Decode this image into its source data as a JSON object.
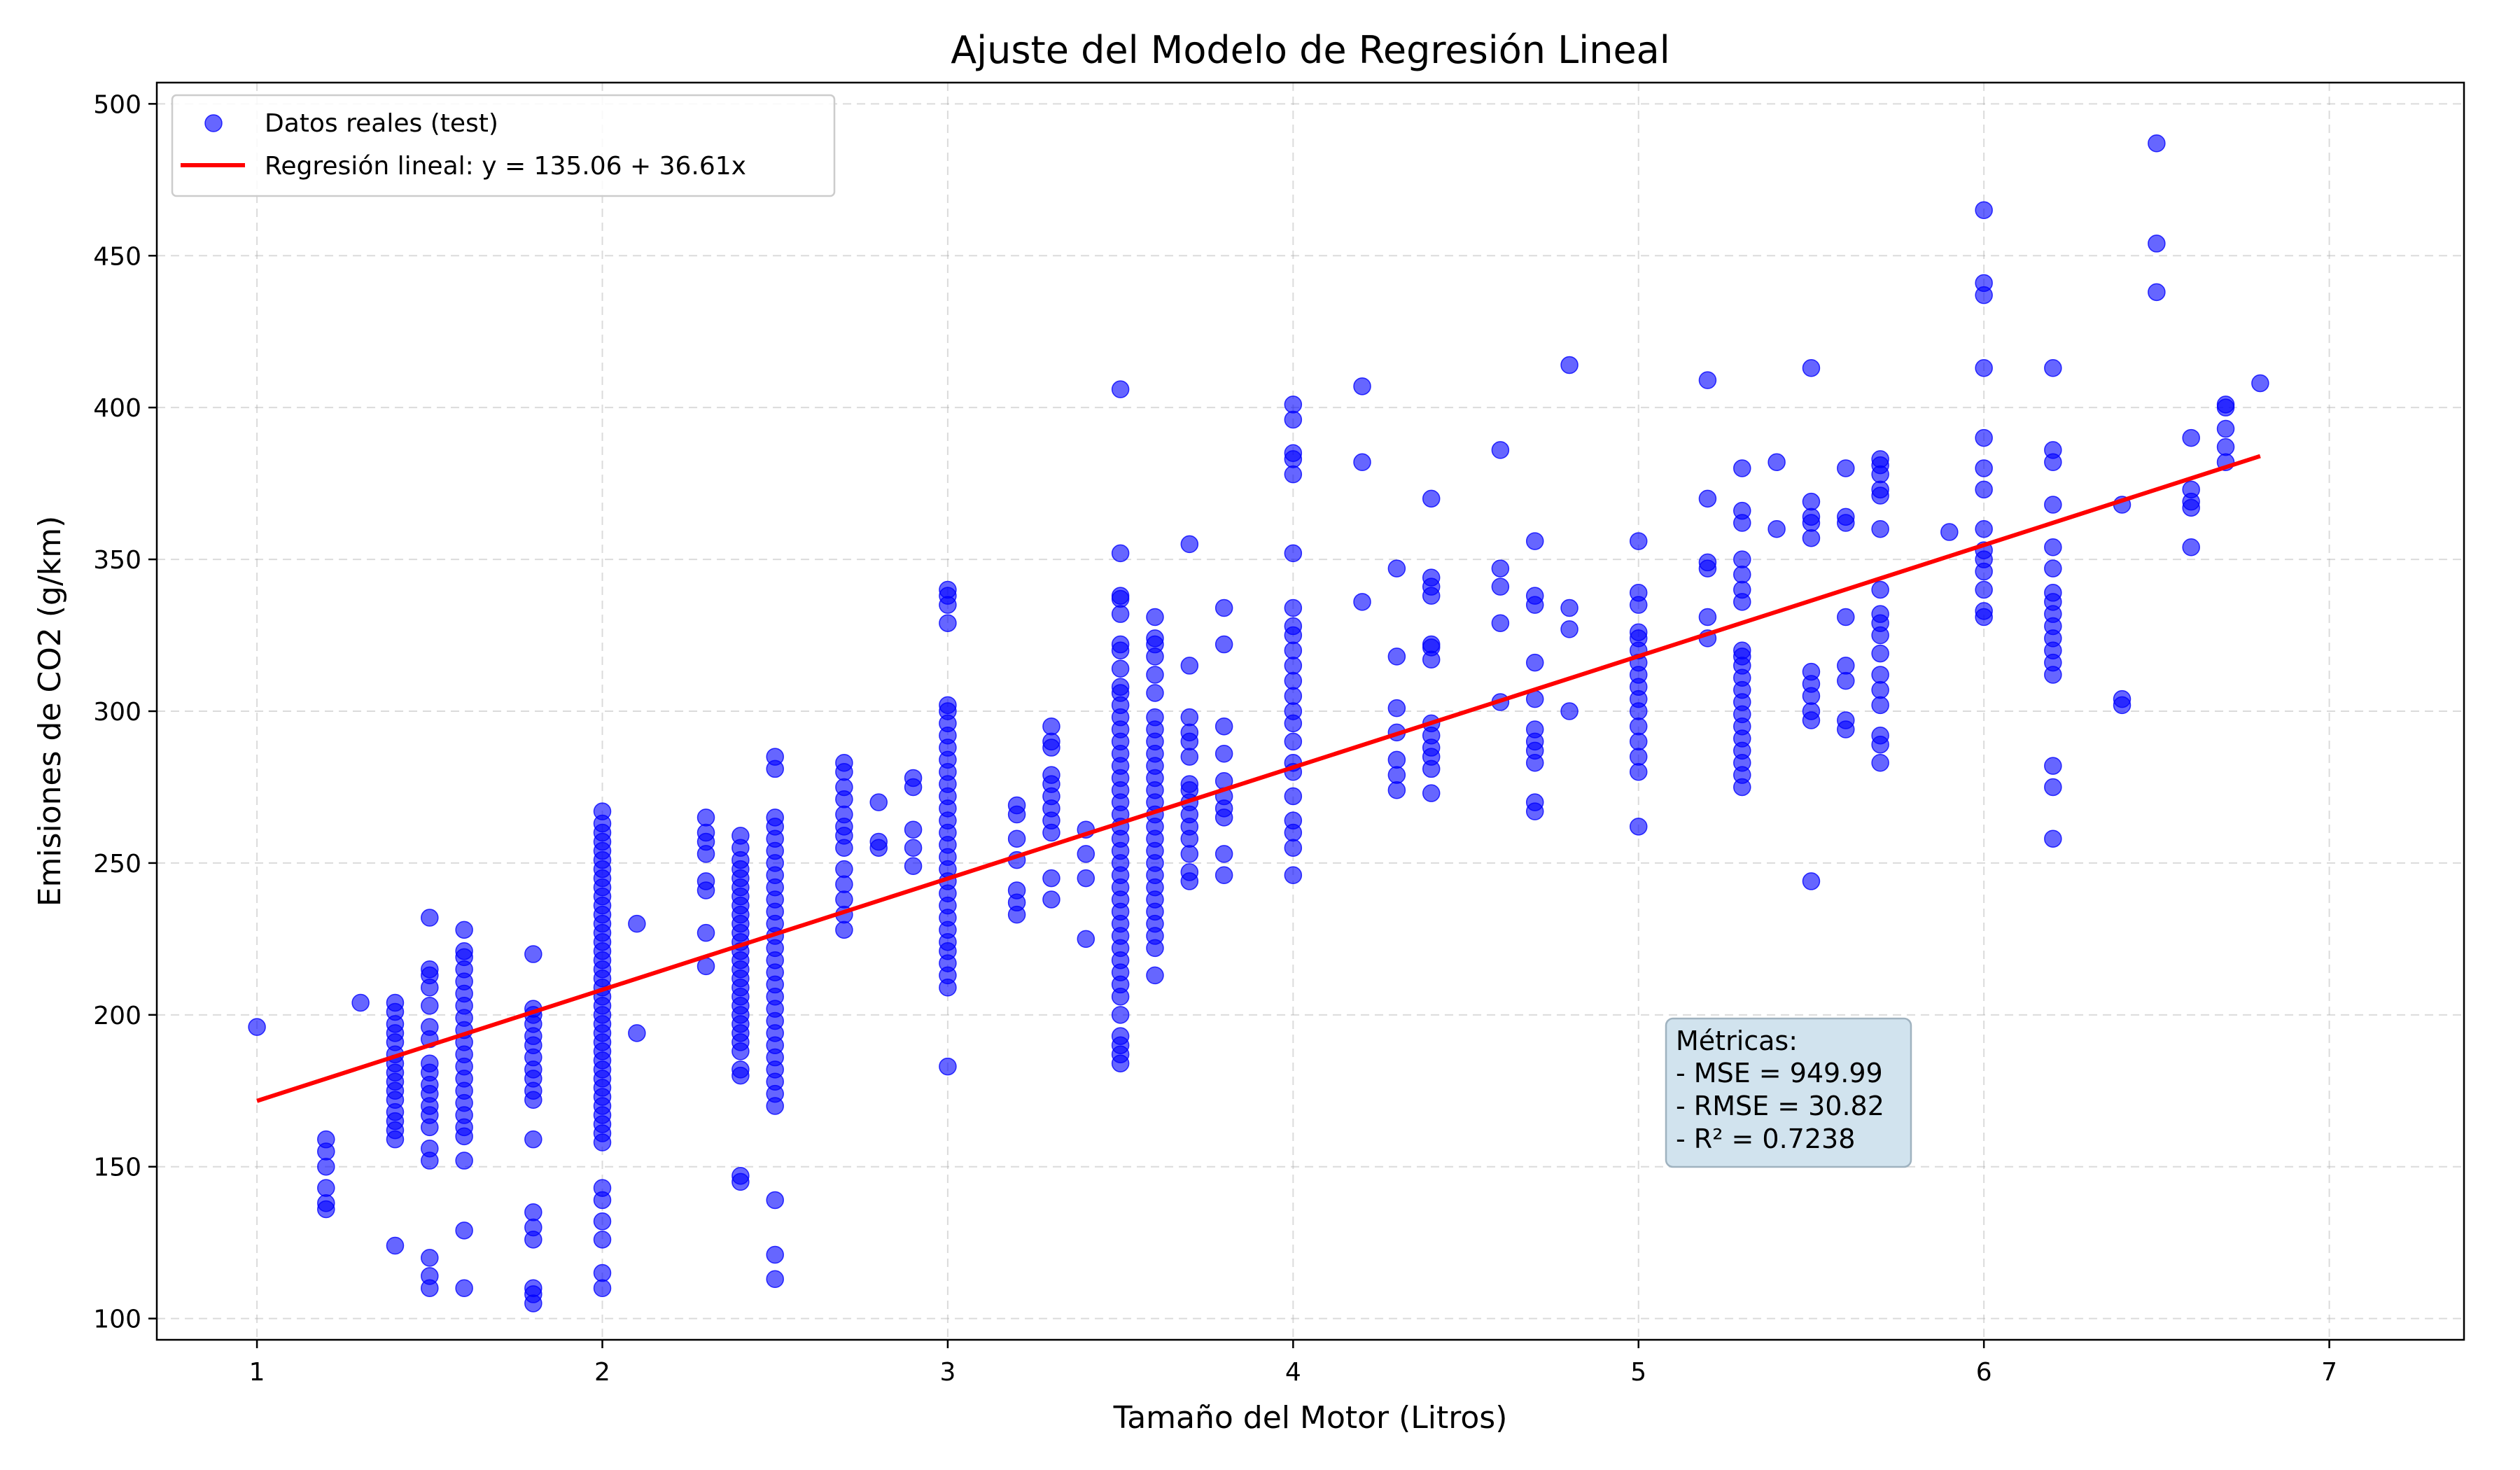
{
  "chart_data": {
    "type": "scatter",
    "title": "Ajuste del Modelo de Regresión Lineal",
    "xlabel": "Tamaño del Motor (Litros)",
    "ylabel": "Emisiones de CO2 (g/km)",
    "xlim": [
      0.71,
      7.39
    ],
    "ylim": [
      93,
      507
    ],
    "xticks": [
      1,
      2,
      3,
      4,
      5,
      6,
      7
    ],
    "yticks": [
      100,
      150,
      200,
      250,
      300,
      350,
      400,
      450,
      500
    ],
    "grid": true,
    "legend_position": "top-left",
    "colors": {
      "points": "#0000ff",
      "line": "#ff0000",
      "metrics_box": "#d1e3ee"
    },
    "series": [
      {
        "name": "Datos reales (test)",
        "kind": "scatter",
        "groups": [
          {
            "x": 1.0,
            "y": [
              196
            ]
          },
          {
            "x": 1.2,
            "y": [
              136,
              138,
              143,
              150,
              155,
              159
            ]
          },
          {
            "x": 1.3,
            "y": [
              204
            ]
          },
          {
            "x": 1.4,
            "y": [
              124,
              159,
              162,
              165,
              168,
              172,
              175,
              178,
              181,
              184,
              187,
              191,
              194,
              197,
              201,
              204
            ]
          },
          {
            "x": 1.5,
            "y": [
              110,
              114,
              120,
              152,
              156,
              163,
              167,
              170,
              174,
              177,
              181,
              184,
              192,
              196,
              203,
              209,
              213,
              215,
              232
            ]
          },
          {
            "x": 1.6,
            "y": [
              110,
              129,
              152,
              160,
              163,
              167,
              171,
              175,
              179,
              183,
              187,
              191,
              195,
              199,
              203,
              207,
              211,
              215,
              219,
              221,
              228
            ]
          },
          {
            "x": 1.8,
            "y": [
              105,
              108,
              110,
              126,
              130,
              135,
              159,
              172,
              175,
              179,
              182,
              186,
              190,
              193,
              197,
              200,
              202,
              220
            ]
          },
          {
            "x": 2.0,
            "y": [
              110,
              115,
              126,
              132,
              139,
              143,
              158,
              161,
              164,
              167,
              170,
              173,
              176,
              179,
              182,
              185,
              188,
              191,
              194,
              197,
              200,
              203,
              206,
              209,
              212,
              215,
              218,
              221,
              224,
              227,
              230,
              233,
              236,
              239,
              242,
              245,
              248,
              251,
              254,
              257,
              260,
              263,
              267
            ]
          },
          {
            "x": 2.1,
            "y": [
              194,
              230
            ]
          },
          {
            "x": 2.3,
            "y": [
              216,
              227,
              241,
              244,
              253,
              257,
              260,
              265
            ]
          },
          {
            "x": 2.4,
            "y": [
              145,
              147,
              180,
              182,
              188,
              191,
              194,
              197,
              200,
              203,
              206,
              209,
              212,
              215,
              218,
              221,
              224,
              227,
              230,
              233,
              236,
              239,
              242,
              245,
              248,
              251,
              255,
              259
            ]
          },
          {
            "x": 2.5,
            "y": [
              113,
              121,
              139,
              170,
              174,
              178,
              182,
              186,
              190,
              194,
              198,
              202,
              206,
              210,
              214,
              218,
              222,
              226,
              230,
              234,
              238,
              242,
              246,
              250,
              254,
              258,
              262,
              265,
              281,
              285
            ]
          },
          {
            "x": 2.7,
            "y": [
              228,
              233,
              238,
              243,
              248,
              255,
              259,
              262,
              266,
              271,
              275,
              280,
              283
            ]
          },
          {
            "x": 2.8,
            "y": [
              255,
              257,
              270
            ]
          },
          {
            "x": 2.9,
            "y": [
              249,
              255,
              261,
              275,
              278
            ]
          },
          {
            "x": 3.0,
            "y": [
              183,
              209,
              213,
              217,
              221,
              224,
              228,
              232,
              236,
              240,
              244,
              248,
              252,
              256,
              260,
              264,
              268,
              272,
              276,
              280,
              284,
              288,
              292,
              296,
              300,
              302,
              329,
              335,
              338,
              340
            ]
          },
          {
            "x": 3.2,
            "y": [
              233,
              237,
              241,
              251,
              258,
              266,
              269
            ]
          },
          {
            "x": 3.3,
            "y": [
              238,
              245,
              260,
              264,
              268,
              272,
              276,
              279,
              288,
              290,
              295
            ]
          },
          {
            "x": 3.4,
            "y": [
              225,
              245,
              253,
              261
            ]
          },
          {
            "x": 3.5,
            "y": [
              184,
              187,
              190,
              193,
              200,
              206,
              210,
              214,
              218,
              222,
              226,
              230,
              234,
              238,
              242,
              246,
              250,
              254,
              258,
              262,
              266,
              270,
              274,
              278,
              282,
              286,
              290,
              294,
              298,
              302,
              306,
              308,
              314,
              320,
              322,
              332,
              337,
              338,
              352,
              406
            ]
          },
          {
            "x": 3.6,
            "y": [
              213,
              222,
              226,
              230,
              234,
              238,
              242,
              246,
              250,
              254,
              258,
              262,
              266,
              270,
              274,
              278,
              282,
              286,
              290,
              294,
              298,
              306,
              312,
              318,
              322,
              324,
              331
            ]
          },
          {
            "x": 3.7,
            "y": [
              244,
              247,
              253,
              258,
              262,
              266,
              270,
              274,
              276,
              285,
              290,
              293,
              298,
              315,
              355
            ]
          },
          {
            "x": 3.8,
            "y": [
              246,
              253,
              265,
              268,
              272,
              277,
              286,
              295,
              322,
              334
            ]
          },
          {
            "x": 4.0,
            "y": [
              246,
              255,
              260,
              264,
              272,
              280,
              283,
              290,
              296,
              300,
              305,
              310,
              315,
              320,
              325,
              328,
              334,
              352,
              378,
              383,
              385,
              396,
              401
            ]
          },
          {
            "x": 4.2,
            "y": [
              336,
              382,
              407
            ]
          },
          {
            "x": 4.3,
            "y": [
              274,
              279,
              284,
              293,
              301,
              318,
              347
            ]
          },
          {
            "x": 4.4,
            "y": [
              273,
              281,
              285,
              288,
              292,
              296,
              317,
              321,
              322,
              338,
              341,
              344,
              370
            ]
          },
          {
            "x": 4.6,
            "y": [
              303,
              329,
              341,
              347,
              386
            ]
          },
          {
            "x": 4.7,
            "y": [
              267,
              270,
              283,
              287,
              290,
              294,
              304,
              316,
              335,
              338,
              356
            ]
          },
          {
            "x": 4.8,
            "y": [
              300,
              327,
              334,
              414
            ]
          },
          {
            "x": 5.0,
            "y": [
              262,
              280,
              285,
              290,
              295,
              300,
              304,
              308,
              312,
              316,
              320,
              324,
              326,
              335,
              339,
              356
            ]
          },
          {
            "x": 5.2,
            "y": [
              324,
              331,
              347,
              349,
              370,
              409
            ]
          },
          {
            "x": 5.3,
            "y": [
              275,
              279,
              283,
              287,
              291,
              295,
              299,
              303,
              307,
              311,
              315,
              318,
              320,
              336,
              340,
              345,
              350,
              362,
              366,
              380
            ]
          },
          {
            "x": 5.4,
            "y": [
              360,
              382
            ]
          },
          {
            "x": 5.5,
            "y": [
              244,
              297,
              300,
              305,
              309,
              313,
              357,
              362,
              364,
              369,
              413
            ]
          },
          {
            "x": 5.6,
            "y": [
              294,
              297,
              310,
              315,
              331,
              362,
              364,
              380
            ]
          },
          {
            "x": 5.7,
            "y": [
              283,
              289,
              292,
              302,
              307,
              312,
              319,
              325,
              329,
              332,
              340,
              360,
              371,
              373,
              378,
              381,
              383
            ]
          },
          {
            "x": 5.9,
            "y": [
              359
            ]
          },
          {
            "x": 6.0,
            "y": [
              331,
              333,
              340,
              346,
              350,
              353,
              360,
              373,
              380,
              390,
              413,
              437,
              441,
              465
            ]
          },
          {
            "x": 6.2,
            "y": [
              258,
              275,
              282,
              312,
              316,
              320,
              324,
              328,
              332,
              336,
              339,
              347,
              354,
              368,
              382,
              386,
              413
            ]
          },
          {
            "x": 6.4,
            "y": [
              302,
              304,
              368
            ]
          },
          {
            "x": 6.5,
            "y": [
              438,
              454,
              487
            ]
          },
          {
            "x": 6.6,
            "y": [
              354,
              367,
              369,
              373,
              390
            ]
          },
          {
            "x": 6.7,
            "y": [
              382,
              387,
              393,
              400,
              401
            ]
          },
          {
            "x": 6.8,
            "y": [
              408
            ]
          }
        ]
      },
      {
        "name": "Regresión lineal: y = 135.06 + 36.61x",
        "kind": "line",
        "intercept": 135.06,
        "slope": 36.61,
        "x_range": [
          1.0,
          6.8
        ]
      }
    ],
    "metrics": {
      "heading": "Métricas:",
      "lines": [
        "- MSE = 949.99",
        "- RMSE = 30.82",
        "- R² = 0.7238"
      ]
    }
  }
}
